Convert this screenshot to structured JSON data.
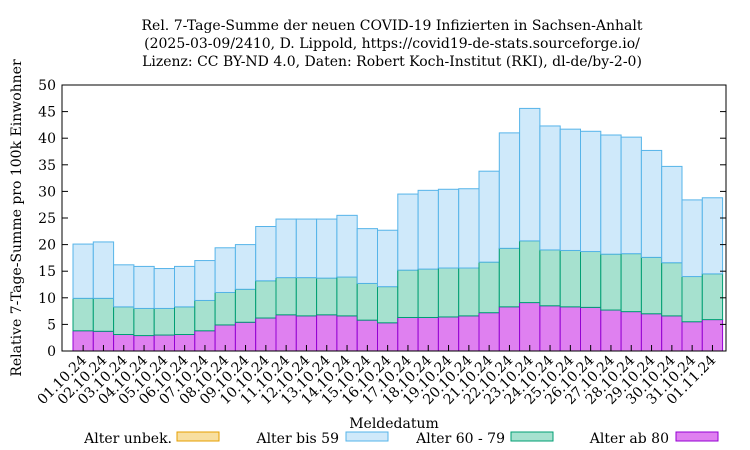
{
  "chart_data": {
    "type": "bar",
    "stacked": true,
    "title": [
      "Rel. 7-Tage-Summe der neuen COVID-19 Infizierten in Sachsen-Anhalt",
      "(2025-03-09/2410, D. Lippold, https://covid19-de-stats.sourceforge.io/",
      "Lizenz: CC BY-ND 4.0, Daten: Robert Koch-Institut (RKI), dl-de/by-2-0)"
    ],
    "xlabel": "Meldedatum",
    "ylabel": "Relative 7-Tage-Summe pro 100k Einwohner",
    "ylim": [
      0,
      50
    ],
    "yticks": [
      0,
      5,
      10,
      15,
      20,
      25,
      30,
      35,
      40,
      45,
      50
    ],
    "grid": false,
    "legend_position": "bottom",
    "categories": [
      "01.10.24",
      "02.10.24",
      "03.10.24",
      "04.10.24",
      "05.10.24",
      "06.10.24",
      "07.10.24",
      "08.10.24",
      "09.10.24",
      "10.10.24",
      "11.10.24",
      "12.10.24",
      "13.10.24",
      "14.10.24",
      "15.10.24",
      "16.10.24",
      "17.10.24",
      "18.10.24",
      "19.10.24",
      "20.10.24",
      "21.10.24",
      "22.10.24",
      "23.10.24",
      "24.10.24",
      "25.10.24",
      "26.10.24",
      "27.10.24",
      "28.10.24",
      "29.10.24",
      "30.10.24",
      "31.10.24",
      "01.11.24"
    ],
    "series": [
      {
        "name": "Alter ab 80",
        "color": "#df80f0",
        "stroke": "#9400d3",
        "values": [
          3.8,
          3.7,
          3.1,
          2.9,
          3.0,
          3.1,
          3.8,
          4.9,
          5.4,
          6.2,
          6.8,
          6.6,
          6.8,
          6.6,
          5.8,
          5.3,
          6.3,
          6.3,
          6.4,
          6.6,
          7.2,
          8.3,
          9.1,
          8.5,
          8.3,
          8.2,
          7.7,
          7.4,
          7.0,
          6.6,
          5.5,
          5.9
        ]
      },
      {
        "name": "Alter 60 - 79",
        "color": "#a6e1cf",
        "stroke": "#009e73",
        "values": [
          6.1,
          6.2,
          5.2,
          5.1,
          5.0,
          5.2,
          5.7,
          6.1,
          6.2,
          7.0,
          7.0,
          7.2,
          6.9,
          7.3,
          6.9,
          6.8,
          8.9,
          9.1,
          9.2,
          9.0,
          9.5,
          11.0,
          11.6,
          10.5,
          10.6,
          10.5,
          10.5,
          10.9,
          10.6,
          10.0,
          8.5,
          8.6
        ]
      },
      {
        "name": "Alter bis 59",
        "color": "#cfe9fa",
        "stroke": "#56b4e9",
        "values": [
          10.2,
          10.6,
          7.9,
          7.9,
          7.5,
          7.6,
          7.5,
          8.4,
          8.4,
          10.2,
          11.0,
          11.0,
          11.1,
          11.6,
          10.3,
          10.6,
          14.3,
          14.8,
          14.8,
          14.9,
          17.1,
          21.7,
          24.9,
          23.3,
          22.8,
          22.6,
          22.4,
          21.9,
          20.1,
          18.1,
          14.4,
          14.3
        ]
      },
      {
        "name": "Alter unbek.",
        "color": "#f8dfa0",
        "stroke": "#e69f00",
        "values": [
          0,
          0,
          0,
          0,
          0,
          0,
          0,
          0,
          0,
          0,
          0,
          0,
          0,
          0,
          0,
          0,
          0,
          0,
          0,
          0,
          0,
          0,
          0,
          0,
          0,
          0,
          0,
          0,
          0,
          0,
          0,
          0
        ]
      }
    ],
    "legend_order": [
      "Alter unbek.",
      "Alter bis 59",
      "Alter 60 - 79",
      "Alter ab 80"
    ]
  }
}
